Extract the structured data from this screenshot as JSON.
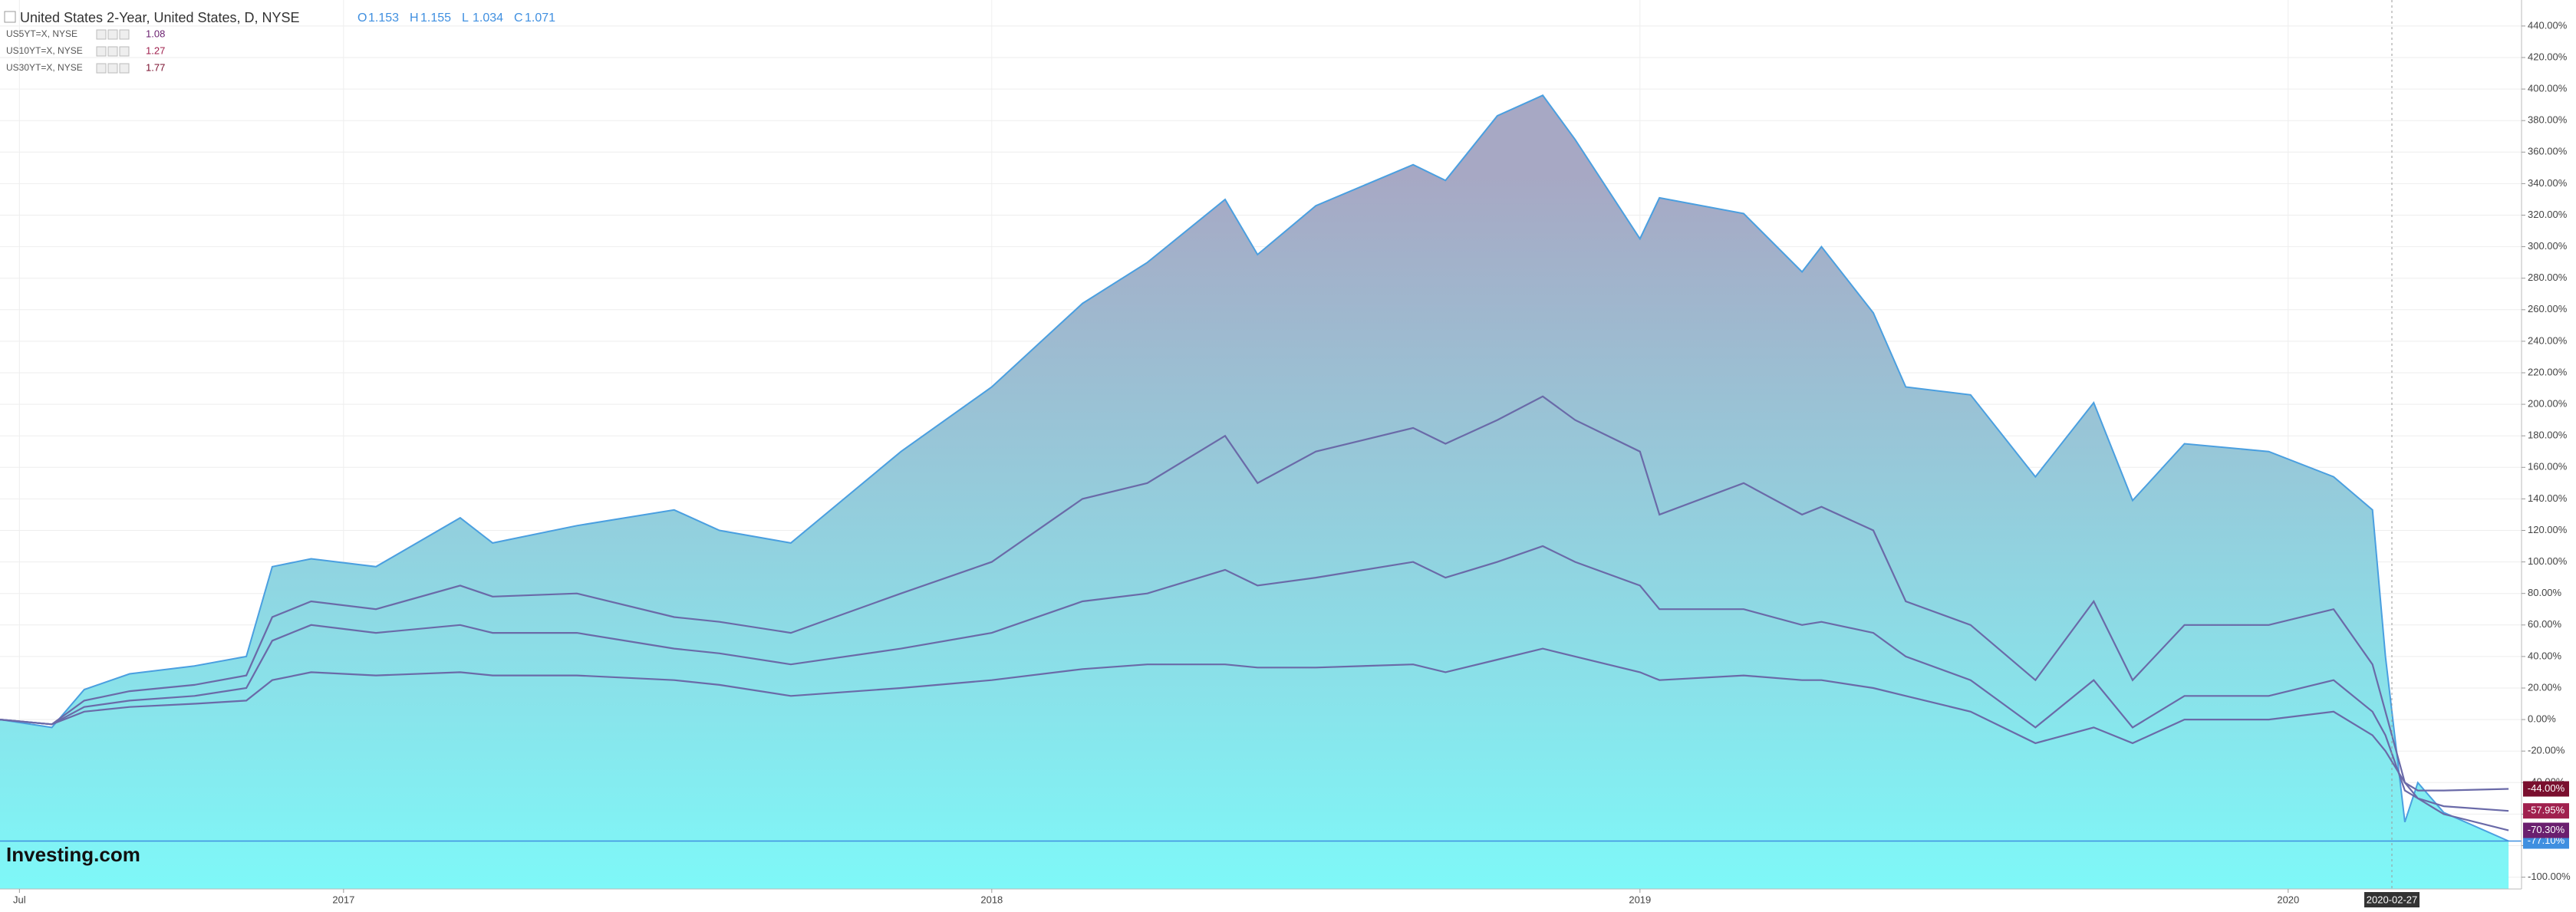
{
  "chart_data": {
    "type": "area-lines",
    "watermark": "Investing.com",
    "ohlc": [
      {
        "label": "O",
        "value": 1.153
      },
      {
        "label": "H",
        "value": 1.155
      },
      {
        "label": "L",
        "value": 1.034
      },
      {
        "label": "C",
        "value": 1.071
      }
    ],
    "x": [
      2016.47,
      2016.55,
      2016.6,
      2016.67,
      2016.77,
      2016.85,
      2016.89,
      2016.95,
      2017.05,
      2017.18,
      2017.23,
      2017.36,
      2017.51,
      2017.58,
      2017.69,
      2017.86,
      2018.0,
      2018.14,
      2018.24,
      2018.36,
      2018.41,
      2018.5,
      2018.65,
      2018.7,
      2018.78,
      2018.85,
      2018.9,
      2019.0,
      2019.03,
      2019.16,
      2019.25,
      2019.28,
      2019.36,
      2019.41,
      2019.51,
      2019.61,
      2019.7,
      2019.76,
      2019.84,
      2019.97,
      2020.07,
      2020.13,
      2020.15,
      2020.18,
      2020.2,
      2020.24,
      2020.34
    ],
    "series": [
      {
        "name": "United States 2-Year, United States, D, NYSE",
        "line_color": "#4a9fe0",
        "tag_color": "#3f8fe0",
        "last_value_label": "-77.10%",
        "values": [
          0,
          -5,
          19,
          29,
          34,
          40,
          97,
          102,
          97,
          128,
          112,
          123,
          133,
          120,
          112,
          170,
          211,
          264,
          290,
          330,
          295,
          326,
          352,
          342,
          383,
          396,
          368,
          305,
          331,
          321,
          284,
          300,
          258,
          211,
          206,
          154,
          201,
          139,
          175,
          170,
          154,
          133,
          40,
          -65,
          -40,
          -59,
          -77.1
        ]
      },
      {
        "name": "US5YT=X, NYSE",
        "legend_value": 1.08,
        "line_color": "#6a6aa8",
        "tag_color": "#6a1f6f",
        "last_value_label": "-70.30%",
        "values": [
          0,
          -3,
          12,
          18,
          22,
          28,
          65,
          75,
          70,
          85,
          78,
          80,
          65,
          62,
          55,
          80,
          100,
          140,
          150,
          180,
          150,
          170,
          185,
          175,
          190,
          205,
          190,
          170,
          130,
          150,
          130,
          135,
          120,
          75,
          60,
          25,
          75,
          25,
          60,
          60,
          70,
          35,
          5,
          -40,
          -50,
          -60,
          -70.3
        ]
      },
      {
        "name": "US10YT=X, NYSE",
        "legend_value": 1.27,
        "line_color": "#6a6aa8",
        "tag_color": "#a0204e",
        "last_value_label": "-57.95%",
        "values": [
          0,
          -3,
          8,
          12,
          15,
          20,
          50,
          60,
          55,
          60,
          55,
          55,
          45,
          42,
          35,
          45,
          55,
          75,
          80,
          95,
          85,
          90,
          100,
          90,
          100,
          110,
          100,
          85,
          70,
          70,
          60,
          62,
          55,
          40,
          25,
          -5,
          25,
          -5,
          15,
          15,
          25,
          5,
          -10,
          -45,
          -50,
          -55,
          -57.95
        ]
      },
      {
        "name": "US30YT=X, NYSE",
        "legend_value": 1.77,
        "line_color": "#6a6aa8",
        "tag_color": "#7a0f2e",
        "last_value_label": "-44.00%",
        "values": [
          0,
          -3,
          5,
          8,
          10,
          12,
          25,
          30,
          28,
          30,
          28,
          28,
          25,
          22,
          15,
          20,
          25,
          32,
          35,
          35,
          33,
          33,
          35,
          30,
          38,
          45,
          40,
          30,
          25,
          28,
          25,
          25,
          20,
          15,
          5,
          -15,
          -5,
          -15,
          0,
          0,
          5,
          -10,
          -20,
          -40,
          -45,
          -45,
          -44
        ]
      }
    ],
    "xlim": [
      2016.47,
      2020.36
    ],
    "xticks": [
      {
        "value": 2016.5,
        "label": "Jul"
      },
      2017,
      2018,
      2019,
      2020
    ],
    "crosshair": {
      "value": 2020.16,
      "label": "2020-02-27"
    },
    "ylim": [
      -107.5,
      456.5
    ],
    "yticks": [
      {
        "value": -100,
        "label": "-100.00%"
      },
      {
        "value": -80,
        "label": "-80.00%"
      },
      {
        "value": -60,
        "label": "-60.00%"
      },
      {
        "value": -40,
        "label": "-40.00%"
      },
      {
        "value": -20,
        "label": "-20.00%"
      },
      {
        "value": 0,
        "label": "0.00%"
      },
      {
        "value": 20,
        "label": "20.00%"
      },
      {
        "value": 40,
        "label": "40.00%"
      },
      {
        "value": 60,
        "label": "60.00%"
      },
      {
        "value": 80,
        "label": "80.00%"
      },
      {
        "value": 100,
        "label": "100.00%"
      },
      {
        "value": 120,
        "label": "120.00%"
      },
      {
        "value": 140,
        "label": "140.00%"
      },
      {
        "value": 160,
        "label": "160.00%"
      },
      {
        "value": 180,
        "label": "180.00%"
      },
      {
        "value": 200,
        "label": "200.00%"
      },
      {
        "value": 220,
        "label": "220.00%"
      },
      {
        "value": 240,
        "label": "240.00%"
      },
      {
        "value": 260,
        "label": "260.00%"
      },
      {
        "value": 280,
        "label": "280.00%"
      },
      {
        "value": 300,
        "label": "300.00%"
      },
      {
        "value": 320,
        "label": "320.00%"
      },
      {
        "value": 340,
        "label": "340.00%"
      },
      {
        "value": 360,
        "label": "360.00%"
      },
      {
        "value": 380,
        "label": "380.00%"
      },
      {
        "value": 400,
        "label": "400.00%"
      },
      {
        "value": 420,
        "label": "420.00%"
      },
      {
        "value": 440,
        "label": "440.00%"
      }
    ],
    "grid": true
  }
}
